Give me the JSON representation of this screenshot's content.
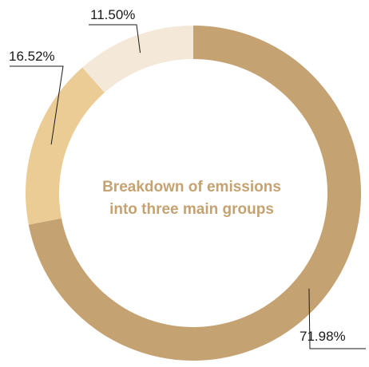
{
  "chart_data": {
    "type": "pie",
    "title_lines": [
      "Breakdown of emissions",
      "into three main groups"
    ],
    "slices": [
      {
        "label": "71.98%",
        "value": 71.98,
        "color": "#c4a272"
      },
      {
        "label": "16.52%",
        "value": 16.52,
        "color": "#ebcc94"
      },
      {
        "label": "11.50%",
        "value": 11.5,
        "color": "#f4e8d8"
      }
    ],
    "title_color": "#c4a272",
    "legend": "none"
  }
}
